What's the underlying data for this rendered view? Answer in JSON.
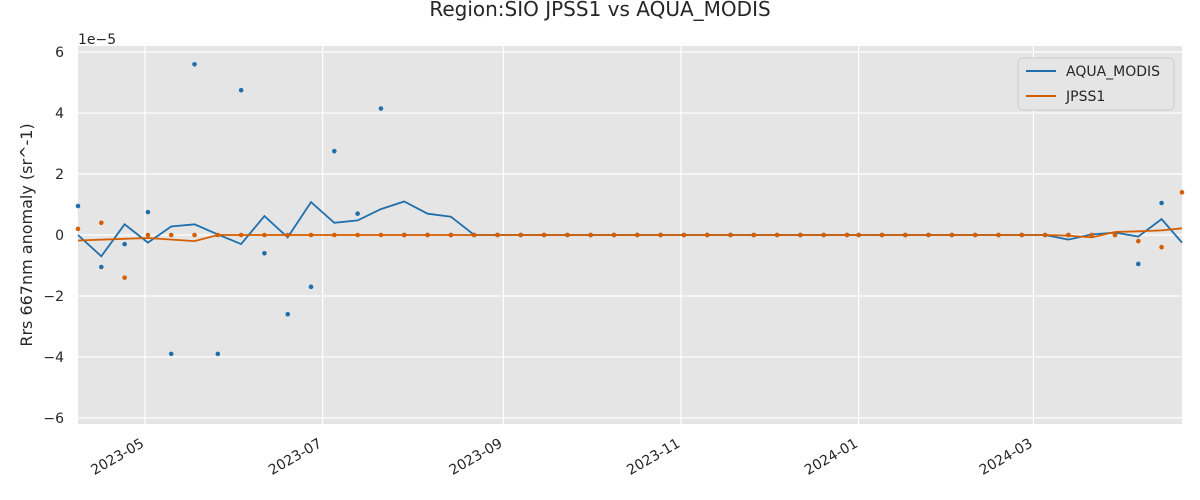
{
  "chart_data": {
    "type": "line",
    "title": "Region:SIO JPSS1 vs AQUA_MODIS",
    "xlabel": "",
    "ylabel": "Rrs 667nm anomaly (sr^-1)",
    "y_offset_label": "1e−5",
    "xlim": [
      "2023-04-08",
      "2024-04-21"
    ],
    "ylim": [
      -6.2,
      6.2
    ],
    "x_ticks": [
      "2023-05-01",
      "2023-07-01",
      "2023-09-01",
      "2023-11-01",
      "2024-01-01",
      "2024-03-01"
    ],
    "x_tick_labels": [
      "2023-05",
      "2023-07",
      "2023-09",
      "2023-11",
      "2024-01",
      "2024-03"
    ],
    "y_ticks": [
      -6,
      -4,
      -2,
      0,
      2,
      4,
      6
    ],
    "y_tick_labels": [
      "−6",
      "−4",
      "−2",
      "0",
      "2",
      "4",
      "6"
    ],
    "grid": true,
    "legend_position": "top-right",
    "series": [
      {
        "name": "AQUA_MODIS",
        "color": "#1f6fad",
        "x": [
          "2023-04-08",
          "2023-04-16",
          "2023-04-24",
          "2023-05-02",
          "2023-05-10",
          "2023-05-18",
          "2023-05-26",
          "2023-06-03",
          "2023-06-11",
          "2023-06-19",
          "2023-06-27",
          "2023-07-05",
          "2023-07-13",
          "2023-07-21",
          "2023-07-29",
          "2023-08-06",
          "2023-08-14",
          "2023-08-22",
          "2023-08-30",
          "2023-09-07",
          "2023-09-15",
          "2023-09-23",
          "2023-10-01",
          "2023-10-09",
          "2023-10-17",
          "2023-10-25",
          "2023-11-02",
          "2023-11-10",
          "2023-11-18",
          "2023-11-26",
          "2023-12-04",
          "2023-12-12",
          "2023-12-20",
          "2023-12-28",
          "2024-01-01",
          "2024-01-09",
          "2024-01-17",
          "2024-01-25",
          "2024-02-02",
          "2024-02-10",
          "2024-02-18",
          "2024-02-26",
          "2024-03-05",
          "2024-03-13",
          "2024-03-21",
          "2024-03-29",
          "2024-04-06",
          "2024-04-14",
          "2024-04-21"
        ],
        "values": [
          0.0,
          -0.7,
          0.35,
          -0.25,
          0.28,
          0.35,
          0.02,
          -0.3,
          0.62,
          -0.08,
          1.08,
          0.4,
          0.48,
          0.85,
          1.1,
          0.7,
          0.6,
          0.0,
          0.0,
          0.0,
          0.0,
          0.0,
          0.0,
          0.0,
          0.0,
          0.0,
          0.0,
          0.0,
          0.0,
          0.0,
          0.0,
          0.0,
          0.0,
          0.0,
          0.0,
          0.0,
          0.0,
          0.0,
          0.0,
          0.0,
          0.0,
          0.0,
          0.0,
          -0.15,
          0.02,
          0.08,
          -0.05,
          0.52,
          -0.25
        ],
        "scatter_x": [
          "2023-04-08",
          "2023-04-16",
          "2023-04-24",
          "2023-05-02",
          "2023-05-10",
          "2023-05-18",
          "2023-05-26",
          "2023-06-03",
          "2023-06-11",
          "2023-06-19",
          "2023-06-27",
          "2023-07-05",
          "2023-07-13",
          "2023-07-21",
          "2023-07-29",
          "2023-08-06",
          "2023-08-14",
          "2023-08-22",
          "2023-08-30",
          "2023-09-07",
          "2023-09-15",
          "2023-09-23",
          "2023-10-01",
          "2023-10-09",
          "2023-10-17",
          "2023-10-25",
          "2023-11-02",
          "2023-11-10",
          "2023-11-18",
          "2023-11-26",
          "2023-12-04",
          "2023-12-12",
          "2023-12-20",
          "2023-12-28",
          "2024-01-01",
          "2024-01-09",
          "2024-01-17",
          "2024-01-25",
          "2024-02-02",
          "2024-02-10",
          "2024-02-18",
          "2024-02-26",
          "2024-03-05",
          "2024-03-13",
          "2024-03-21",
          "2024-03-29",
          "2024-04-06",
          "2024-04-14"
        ],
        "scatter_values": [
          0.95,
          -1.05,
          -0.3,
          0.75,
          -3.9,
          5.6,
          -3.9,
          4.75,
          -0.6,
          -2.6,
          -1.7,
          2.75,
          0.7,
          4.15,
          0.0,
          0.0,
          0.0,
          0.0,
          0.0,
          0.0,
          0.0,
          0.0,
          0.0,
          0.0,
          0.0,
          0.0,
          0.0,
          0.0,
          0.0,
          0.0,
          0.0,
          0.0,
          0.0,
          0.0,
          0.0,
          0.0,
          0.0,
          0.0,
          0.0,
          0.0,
          0.0,
          0.0,
          0.0,
          0.0,
          0.0,
          0.0,
          -0.95,
          1.05
        ]
      },
      {
        "name": "JPSS1",
        "color": "#d55e00",
        "x": [
          "2023-04-08",
          "2023-05-02",
          "2023-05-18",
          "2023-05-26",
          "2023-06-03",
          "2023-06-11",
          "2023-06-19",
          "2023-06-27",
          "2023-07-05",
          "2023-07-13",
          "2023-07-21",
          "2023-07-29",
          "2023-08-06",
          "2023-08-14",
          "2023-08-22",
          "2023-08-30",
          "2023-09-07",
          "2023-09-15",
          "2023-09-23",
          "2023-10-01",
          "2023-10-09",
          "2023-10-17",
          "2023-10-25",
          "2023-11-02",
          "2023-11-10",
          "2023-11-18",
          "2023-11-26",
          "2023-12-04",
          "2023-12-12",
          "2023-12-20",
          "2023-12-28",
          "2024-01-01",
          "2024-01-09",
          "2024-01-17",
          "2024-01-25",
          "2024-02-02",
          "2024-02-10",
          "2024-02-18",
          "2024-02-26",
          "2024-03-05",
          "2024-03-13",
          "2024-03-21",
          "2024-03-29",
          "2024-04-06",
          "2024-04-14",
          "2024-04-21"
        ],
        "values": [
          -0.18,
          -0.1,
          -0.2,
          0.0,
          0.0,
          0.0,
          0.0,
          0.0,
          0.0,
          0.0,
          0.0,
          0.0,
          0.0,
          0.0,
          0.0,
          0.0,
          0.0,
          0.0,
          0.0,
          0.0,
          0.0,
          0.0,
          0.0,
          0.0,
          0.0,
          0.0,
          0.0,
          0.0,
          0.0,
          0.0,
          0.0,
          0.0,
          0.0,
          0.0,
          0.0,
          0.0,
          0.0,
          0.0,
          0.0,
          0.0,
          -0.02,
          -0.08,
          0.1,
          0.12,
          0.15,
          0.22
        ],
        "scatter_x": [
          "2023-04-08",
          "2023-04-16",
          "2023-04-24",
          "2023-05-02",
          "2023-05-10",
          "2023-05-18",
          "2023-05-26",
          "2023-06-03",
          "2023-06-11",
          "2023-06-19",
          "2023-06-27",
          "2023-07-05",
          "2023-07-13",
          "2023-07-21",
          "2023-07-29",
          "2023-08-06",
          "2023-08-14",
          "2023-08-22",
          "2023-08-30",
          "2023-09-07",
          "2023-09-15",
          "2023-09-23",
          "2023-10-01",
          "2023-10-09",
          "2023-10-17",
          "2023-10-25",
          "2023-11-02",
          "2023-11-10",
          "2023-11-18",
          "2023-11-26",
          "2023-12-04",
          "2023-12-12",
          "2023-12-20",
          "2023-12-28",
          "2024-01-01",
          "2024-01-09",
          "2024-01-17",
          "2024-01-25",
          "2024-02-02",
          "2024-02-10",
          "2024-02-18",
          "2024-02-26",
          "2024-03-05",
          "2024-03-13",
          "2024-03-21",
          "2024-03-29",
          "2024-04-06",
          "2024-04-14",
          "2024-04-21"
        ],
        "scatter_values": [
          0.2,
          0.4,
          -1.4,
          0.0,
          0.0,
          0.0,
          0.0,
          0.0,
          0.0,
          0.0,
          0.0,
          0.0,
          0.0,
          0.0,
          0.0,
          0.0,
          0.0,
          0.0,
          0.0,
          0.0,
          0.0,
          0.0,
          0.0,
          0.0,
          0.0,
          0.0,
          0.0,
          0.0,
          0.0,
          0.0,
          0.0,
          0.0,
          0.0,
          0.0,
          0.0,
          0.0,
          0.0,
          0.0,
          0.0,
          0.0,
          0.0,
          0.0,
          0.0,
          0.0,
          0.0,
          0.0,
          -0.2,
          -0.4,
          1.4
        ]
      }
    ]
  }
}
